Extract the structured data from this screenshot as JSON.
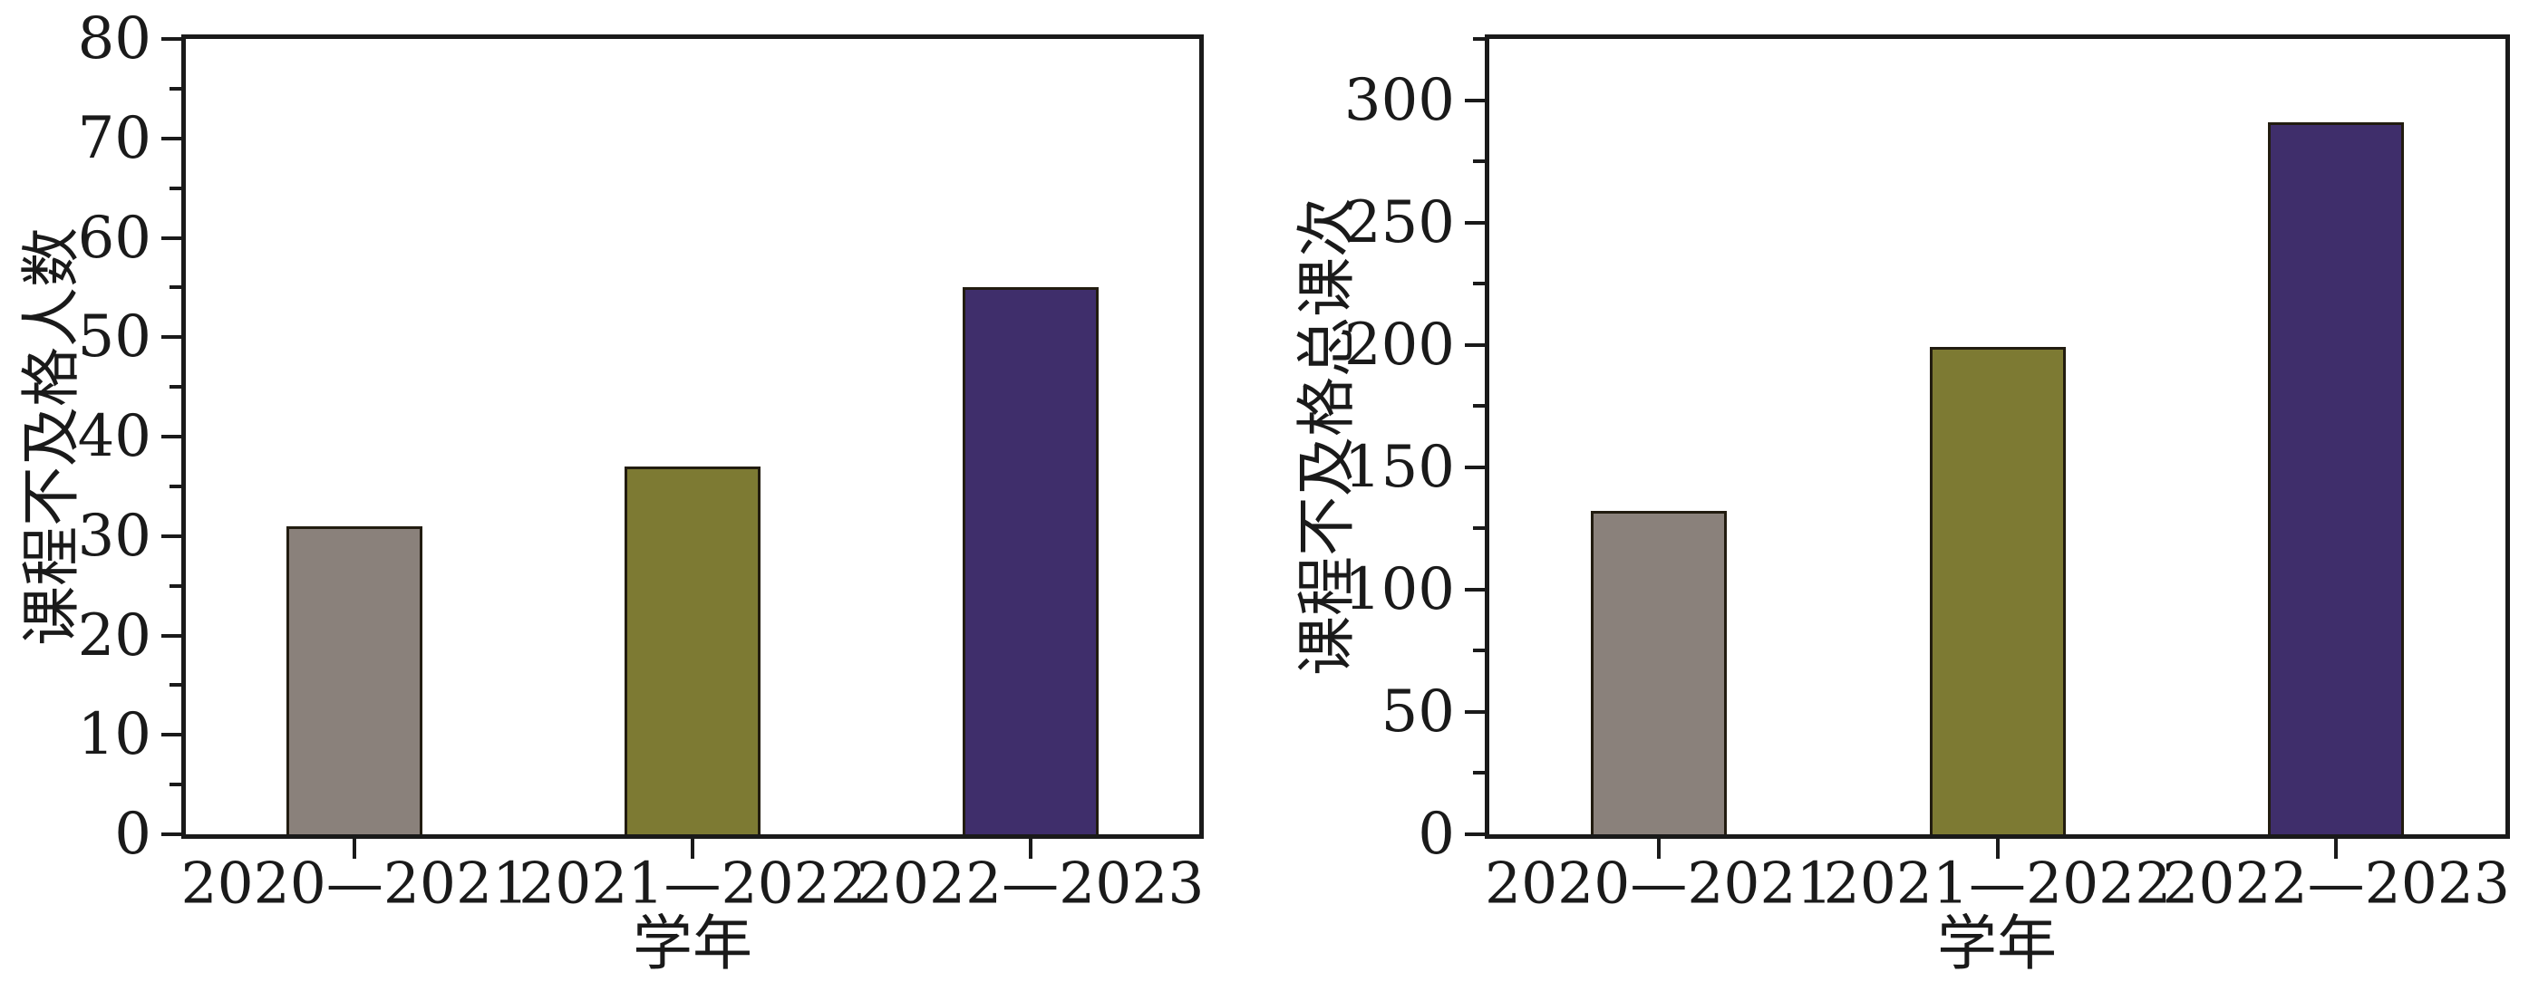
{
  "figure": {
    "background": "#ffffff",
    "axis_color": "#1a1a1a",
    "bar_outline_color": "#221c10"
  },
  "chart_data": [
    {
      "type": "bar",
      "title": "",
      "categories": [
        "2020—2021",
        "2021—2022",
        "2022—2023"
      ],
      "values": [
        31,
        37,
        55
      ],
      "bar_colors": [
        "#8A817B",
        "#7D7A33",
        "#3F2E6B"
      ],
      "xlabel": "学年",
      "ylabel": "课程不及格人数",
      "ylim": [
        0,
        80
      ],
      "ytick_major": 10,
      "ytick_minor": 5,
      "ytick_labels": [
        "0",
        "10",
        "20",
        "30",
        "40",
        "50",
        "60",
        "70",
        "80"
      ],
      "grid": false,
      "legend_position": "none"
    },
    {
      "type": "bar",
      "title": "",
      "categories": [
        "2020—2021",
        "2021—2022",
        "2022—2023"
      ],
      "values": [
        132,
        199,
        291
      ],
      "bar_colors": [
        "#8A817B",
        "#7D7A33",
        "#3F2E6B"
      ],
      "xlabel": "学年",
      "ylabel": "课程不及格总课次",
      "ylim": [
        0,
        325
      ],
      "ytick_major": 50,
      "ytick_minor": 25,
      "ytick_labels": [
        "0",
        "50",
        "100",
        "150",
        "200",
        "250",
        "300"
      ],
      "grid": false,
      "legend_position": "none"
    }
  ]
}
